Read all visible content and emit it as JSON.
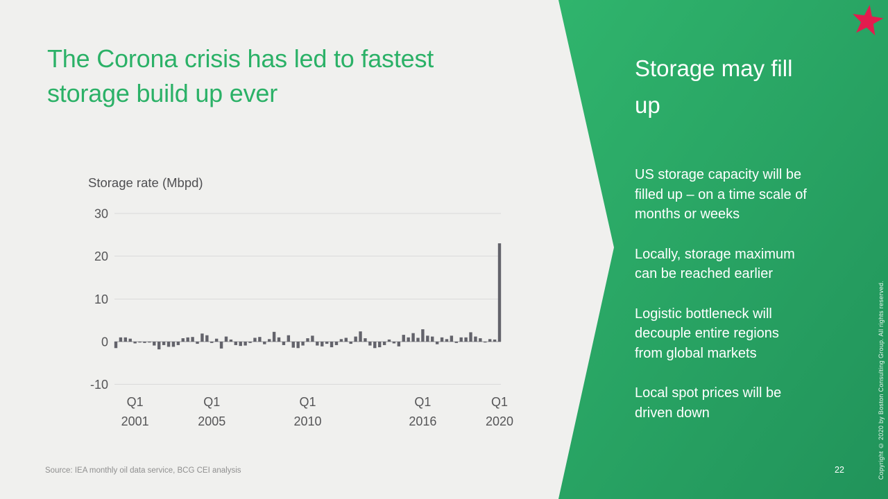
{
  "slide": {
    "title_lines": [
      "The Corona crisis has led to fastest",
      "storage build up ever"
    ],
    "source": "Source: IEA monthly oil data service, BCG CEI analysis",
    "page_number": "22",
    "copyright": "Copyright © 2020 by Boston Consulting Group. All rights reserved."
  },
  "panel": {
    "heading_lines": [
      "Storage may fill",
      "up"
    ],
    "bullets": [
      "US storage capacity will be filled up – on a time scale of months or weeks",
      "Locally, storage maximum can be reached earlier",
      "Logistic bottleneck will decouple entire regions from global markets",
      "Local spot prices will be driven down"
    ]
  },
  "colors": {
    "title_green": "#2bb167",
    "panel_gradient_top": "#30b56d",
    "panel_gradient_bottom": "#21935a",
    "star_red": "#e31b4e",
    "bar_gray": "#63636b",
    "axis_text": "#555557",
    "gridline": "#dadada",
    "zero_line": "#9e9ea2"
  },
  "chart_data": {
    "type": "bar",
    "title": "Storage rate (Mbpd)",
    "ylabel": "Storage rate (Mbpd)",
    "xlabel": "",
    "ylim": [
      -10,
      30
    ],
    "yticks": [
      30,
      20,
      10,
      0,
      -10
    ],
    "grid": true,
    "legend": "none",
    "bar_color": "#63636b",
    "xticks": [
      {
        "line1": "Q1",
        "line2": "2001",
        "index": 4
      },
      {
        "line1": "Q1",
        "line2": "2005",
        "index": 20
      },
      {
        "line1": "Q1",
        "line2": "2010",
        "index": 40
      },
      {
        "line1": "Q1",
        "line2": "2016",
        "index": 64
      },
      {
        "line1": "Q1",
        "line2": "2020",
        "index": 80
      }
    ],
    "categories": [
      "2000 Q1",
      "2000 Q2",
      "2000 Q3",
      "2000 Q4",
      "2001 Q1",
      "2001 Q2",
      "2001 Q3",
      "2001 Q4",
      "2002 Q1",
      "2002 Q2",
      "2002 Q3",
      "2002 Q4",
      "2003 Q1",
      "2003 Q2",
      "2003 Q3",
      "2003 Q4",
      "2004 Q1",
      "2004 Q2",
      "2004 Q3",
      "2004 Q4",
      "2005 Q1",
      "2005 Q2",
      "2005 Q3",
      "2005 Q4",
      "2006 Q1",
      "2006 Q2",
      "2006 Q3",
      "2006 Q4",
      "2007 Q1",
      "2007 Q2",
      "2007 Q3",
      "2007 Q4",
      "2008 Q1",
      "2008 Q2",
      "2008 Q3",
      "2008 Q4",
      "2009 Q1",
      "2009 Q2",
      "2009 Q3",
      "2009 Q4",
      "2010 Q1",
      "2010 Q2",
      "2010 Q3",
      "2010 Q4",
      "2011 Q1",
      "2011 Q2",
      "2011 Q3",
      "2011 Q4",
      "2012 Q1",
      "2012 Q2",
      "2012 Q3",
      "2012 Q4",
      "2013 Q1",
      "2013 Q2",
      "2013 Q3",
      "2013 Q4",
      "2014 Q1",
      "2014 Q2",
      "2014 Q3",
      "2014 Q4",
      "2015 Q1",
      "2015 Q2",
      "2015 Q3",
      "2015 Q4",
      "2016 Q1",
      "2016 Q2",
      "2016 Q3",
      "2016 Q4",
      "2017 Q1",
      "2017 Q2",
      "2017 Q3",
      "2017 Q4",
      "2018 Q1",
      "2018 Q2",
      "2018 Q3",
      "2018 Q4",
      "2019 Q1",
      "2019 Q2",
      "2019 Q3",
      "2019 Q4",
      "2020 Q1"
    ],
    "values": [
      -1.5,
      1.0,
      1.0,
      0.7,
      -0.4,
      -0.2,
      -0.3,
      -0.2,
      -0.9,
      -1.8,
      -0.8,
      -1.2,
      -1.2,
      -0.8,
      0.8,
      1.0,
      1.1,
      -0.5,
      1.9,
      1.5,
      -0.3,
      0.7,
      -1.6,
      1.2,
      0.5,
      -0.8,
      -1.0,
      -0.9,
      -0.3,
      0.9,
      1.1,
      -0.6,
      0.6,
      2.3,
      1.0,
      -0.8,
      1.5,
      -1.4,
      -1.5,
      -0.9,
      0.8,
      1.4,
      -0.9,
      -1.1,
      -0.5,
      -1.3,
      -0.8,
      0.6,
      0.9,
      -0.5,
      1.2,
      2.4,
      0.8,
      -0.9,
      -1.5,
      -1.3,
      -0.8,
      0.5,
      -0.4,
      -1.1,
      1.6,
      1.0,
      2.0,
      0.9,
      2.9,
      1.4,
      1.2,
      -0.6,
      1.0,
      0.6,
      1.4,
      -0.3,
      1.0,
      1.0,
      2.2,
      1.2,
      0.8,
      -0.2,
      0.6,
      0.5,
      23.0
    ]
  }
}
